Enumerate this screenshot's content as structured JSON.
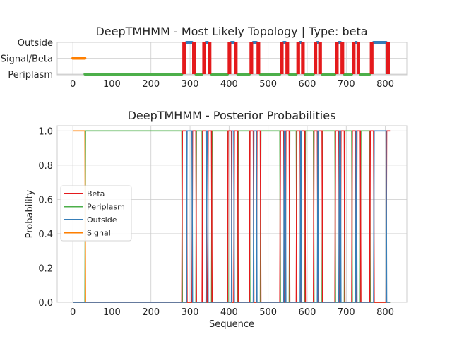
{
  "colors": {
    "beta": "#e41a1c",
    "periplasm": "#4daf4a",
    "outside": "#377eb8",
    "signal": "#ff7f00"
  },
  "segments": [
    {
      "state": "signal",
      "start": 0,
      "end": 31
    },
    {
      "state": "periplasm",
      "start": 31,
      "end": 279
    },
    {
      "state": "beta",
      "start": 279,
      "end": 291
    },
    {
      "state": "outside",
      "start": 291,
      "end": 305
    },
    {
      "state": "beta",
      "start": 305,
      "end": 315
    },
    {
      "state": "periplasm",
      "start": 315,
      "end": 331
    },
    {
      "state": "beta",
      "start": 331,
      "end": 341
    },
    {
      "state": "outside",
      "start": 341,
      "end": 345
    },
    {
      "state": "beta",
      "start": 345,
      "end": 355
    },
    {
      "state": "periplasm",
      "start": 355,
      "end": 396
    },
    {
      "state": "beta",
      "start": 396,
      "end": 406
    },
    {
      "state": "outside",
      "start": 406,
      "end": 412
    },
    {
      "state": "beta",
      "start": 412,
      "end": 422
    },
    {
      "state": "periplasm",
      "start": 422,
      "end": 452
    },
    {
      "state": "beta",
      "start": 452,
      "end": 462
    },
    {
      "state": "outside",
      "start": 462,
      "end": 470
    },
    {
      "state": "beta",
      "start": 470,
      "end": 480
    },
    {
      "state": "periplasm",
      "start": 480,
      "end": 530
    },
    {
      "state": "beta",
      "start": 530,
      "end": 540
    },
    {
      "state": "outside",
      "start": 540,
      "end": 544
    },
    {
      "state": "beta",
      "start": 544,
      "end": 554
    },
    {
      "state": "periplasm",
      "start": 554,
      "end": 572
    },
    {
      "state": "beta",
      "start": 572,
      "end": 582
    },
    {
      "state": "outside",
      "start": 582,
      "end": 584
    },
    {
      "state": "beta",
      "start": 584,
      "end": 594
    },
    {
      "state": "periplasm",
      "start": 594,
      "end": 616
    },
    {
      "state": "beta",
      "start": 616,
      "end": 626
    },
    {
      "state": "outside",
      "start": 626,
      "end": 628
    },
    {
      "state": "beta",
      "start": 628,
      "end": 638
    },
    {
      "state": "periplasm",
      "start": 638,
      "end": 671
    },
    {
      "state": "beta",
      "start": 671,
      "end": 681
    },
    {
      "state": "outside",
      "start": 681,
      "end": 685
    },
    {
      "state": "beta",
      "start": 685,
      "end": 695
    },
    {
      "state": "periplasm",
      "start": 695,
      "end": 714
    },
    {
      "state": "beta",
      "start": 714,
      "end": 724
    },
    {
      "state": "outside",
      "start": 724,
      "end": 726
    },
    {
      "state": "beta",
      "start": 726,
      "end": 736
    },
    {
      "state": "periplasm",
      "start": 736,
      "end": 760
    },
    {
      "state": "beta",
      "start": 760,
      "end": 770
    },
    {
      "state": "outside",
      "start": 770,
      "end": 802
    },
    {
      "state": "beta",
      "start": 802,
      "end": 812
    }
  ],
  "chart_data": [
    {
      "type": "topology",
      "title": "DeepTMHMM - Most Likely Topology | Type: beta",
      "xlabel": "",
      "ylabel": "",
      "xlim": [
        -40,
        855
      ],
      "xticks": [
        0,
        100,
        200,
        300,
        400,
        500,
        600,
        700,
        800
      ],
      "ylevels": [
        {
          "label": "Outside",
          "states": [
            "outside"
          ]
        },
        {
          "label": "Signal/Beta",
          "states": [
            "signal"
          ]
        },
        {
          "label": "Periplasm",
          "states": [
            "periplasm"
          ]
        }
      ],
      "grid": true
    },
    {
      "type": "line",
      "title": "DeepTMHMM - Posterior Probabilities",
      "xlabel": "Sequence",
      "ylabel": "Probability",
      "xlim": [
        -40,
        855
      ],
      "ylim": [
        0,
        1.03
      ],
      "xticks": [
        0,
        100,
        200,
        300,
        400,
        500,
        600,
        700,
        800
      ],
      "yticks": [
        "0.0",
        "0.2",
        "0.4",
        "0.6",
        "0.8",
        "1.0"
      ],
      "legend_position": "center-left",
      "series": [
        {
          "name": "Beta",
          "key": "beta"
        },
        {
          "name": "Periplasm",
          "key": "periplasm"
        },
        {
          "name": "Outside",
          "key": "outside"
        },
        {
          "name": "Signal",
          "key": "signal"
        }
      ],
      "grid": true
    }
  ]
}
